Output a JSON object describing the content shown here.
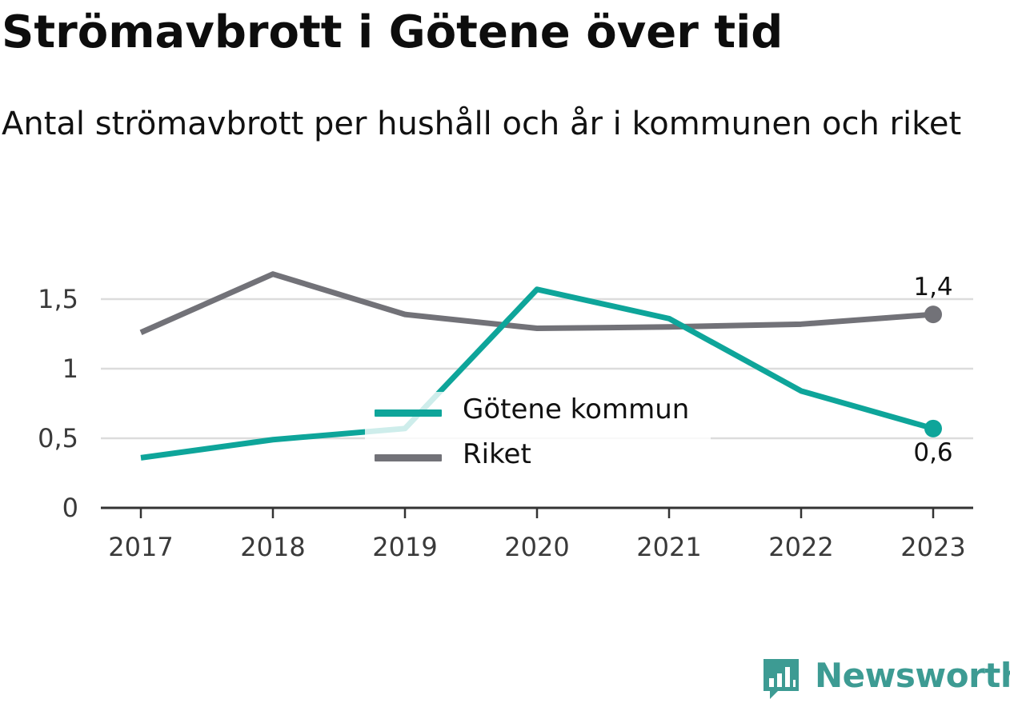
{
  "title": "Strömavbrott i Götene över tid",
  "subtitle": "Antal strömavbrott per hushåll och år i kommunen och riket",
  "brand": {
    "name": "Newsworthy",
    "color": "#3d9b93",
    "icon": "bar-chart-bubble-icon"
  },
  "chart_data": {
    "type": "line",
    "title": "Strömavbrott i Götene över tid",
    "subtitle": "Antal strömavbrott per hushåll och år i kommunen och riket",
    "xlabel": "",
    "ylabel": "",
    "x": [
      "2017",
      "2018",
      "2019",
      "2020",
      "2021",
      "2022",
      "2023"
    ],
    "ylim": [
      0,
      1.7
    ],
    "yticks": [
      0,
      0.5,
      1,
      1.5
    ],
    "ytick_labels": [
      "0",
      "0,5",
      "1",
      "1,5"
    ],
    "grid": true,
    "legend_position": "center",
    "series": [
      {
        "name": "Götene kommun",
        "color": "#0ea59a",
        "values": [
          0.36,
          0.49,
          0.57,
          1.57,
          1.36,
          0.84,
          0.57
        ],
        "end_label": "0,6"
      },
      {
        "name": "Riket",
        "color": "#727278",
        "values": [
          1.26,
          1.68,
          1.39,
          1.29,
          1.3,
          1.32,
          1.39
        ],
        "end_label": "1,4"
      }
    ]
  }
}
